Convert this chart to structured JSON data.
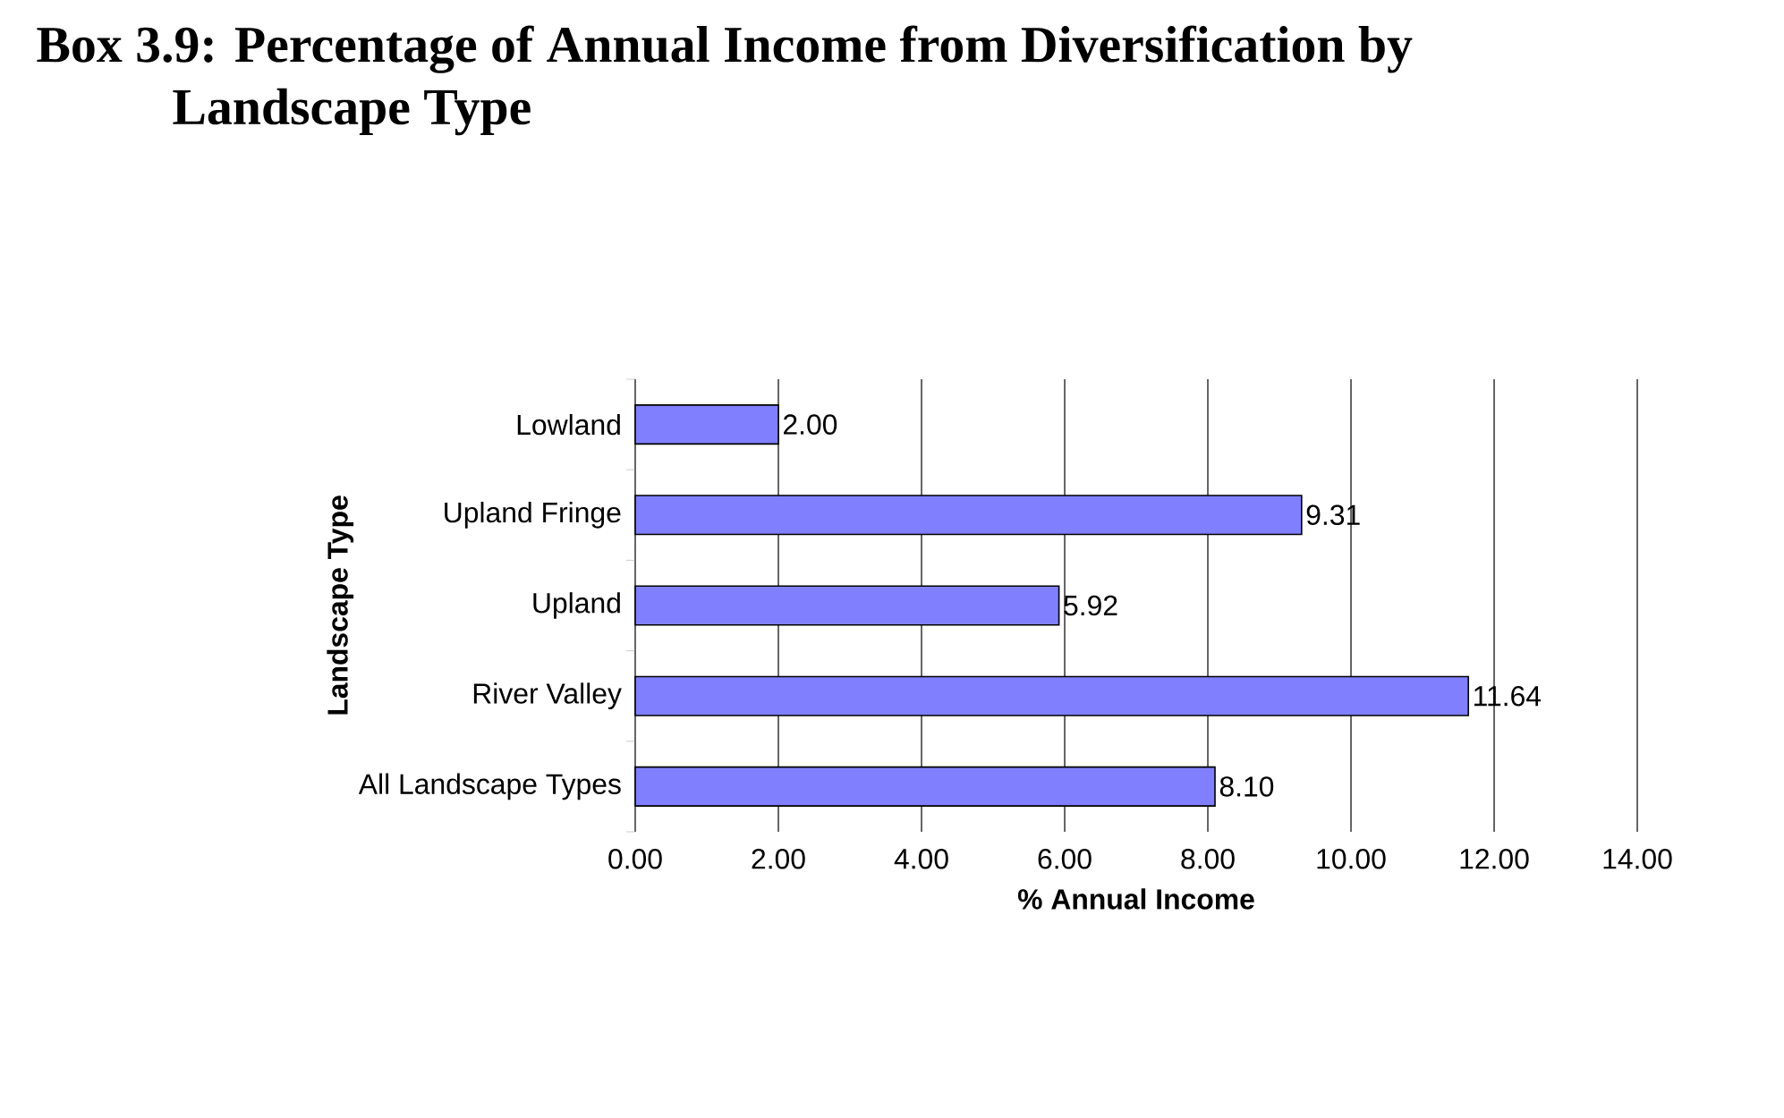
{
  "chart_data": {
    "type": "bar",
    "orientation": "horizontal",
    "title": "Box 3.9: Percentage of Annual Income from Diversification by Landscape Type",
    "xlabel": "% Annual Income",
    "ylabel": "Landscape Type",
    "categories": [
      "Lowland",
      "Upland Fringe",
      "Upland",
      "River Valley",
      "All Landscape Types"
    ],
    "values": [
      2.0,
      9.31,
      5.92,
      11.64,
      8.1
    ],
    "value_labels": [
      "2.00",
      "9.31",
      "5.92",
      "11.64",
      "8.10"
    ],
    "color": "#8080ff",
    "xlim": [
      0,
      14
    ],
    "xticks": [
      {
        "value": 0,
        "label": "0.00"
      },
      {
        "value": 2,
        "label": "2.00"
      },
      {
        "value": 4,
        "label": "4.00"
      },
      {
        "value": 6,
        "label": "6.00"
      },
      {
        "value": 8,
        "label": "8.00"
      },
      {
        "value": 10,
        "label": "10.00"
      },
      {
        "value": 12,
        "label": "12.00"
      },
      {
        "value": 14,
        "label": "14.00"
      }
    ],
    "grid": "x"
  }
}
